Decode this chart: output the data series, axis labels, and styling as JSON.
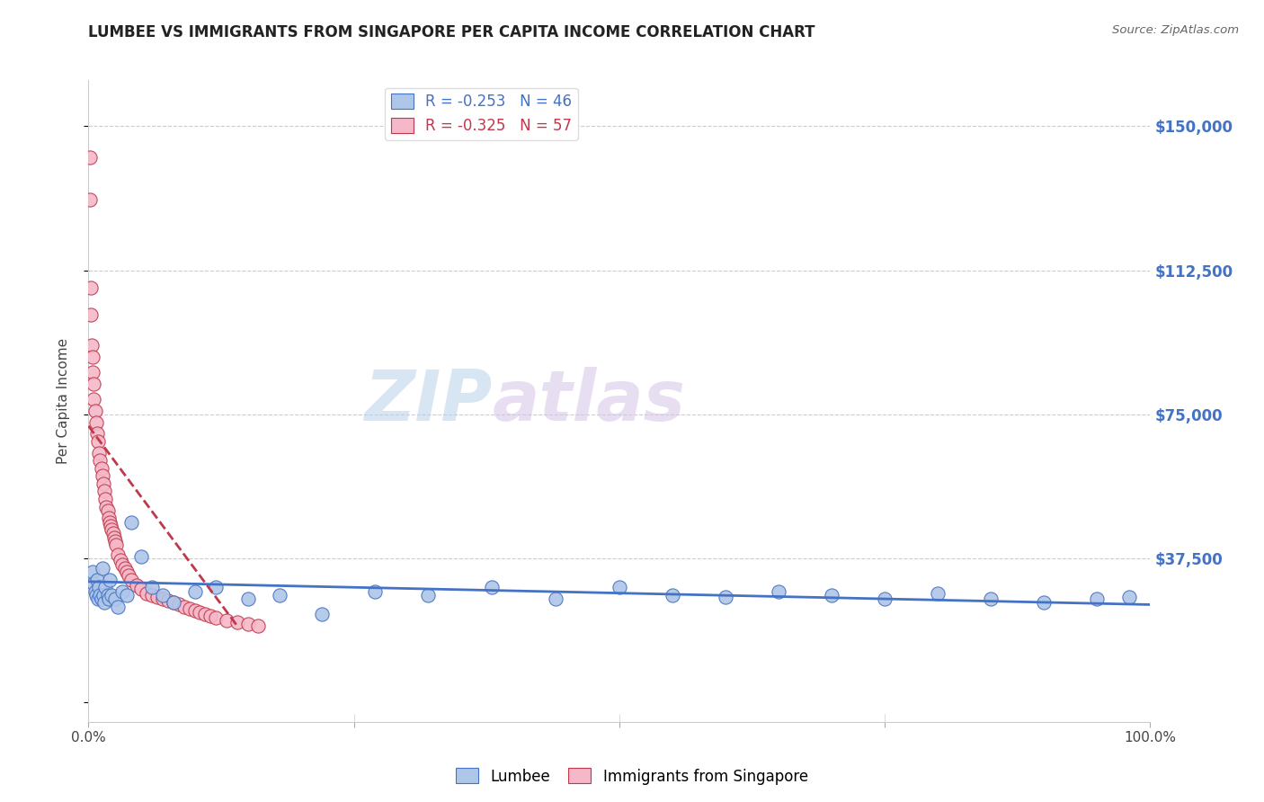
{
  "title": "LUMBEE VS IMMIGRANTS FROM SINGAPORE PER CAPITA INCOME CORRELATION CHART",
  "source": "Source: ZipAtlas.com",
  "ylabel": "Per Capita Income",
  "yticks": [
    0,
    37500,
    75000,
    112500,
    150000
  ],
  "ytick_labels": [
    "",
    "$37,500",
    "$75,000",
    "$112,500",
    "$150,000"
  ],
  "ylim": [
    -5000,
    162000
  ],
  "xlim": [
    0,
    1.0
  ],
  "watermark_zip": "ZIP",
  "watermark_atlas": "atlas",
  "legend_lumbee": "R = -0.253   N = 46",
  "legend_singapore": "R = -0.325   N = 57",
  "lumbee_color": "#aec6e8",
  "lumbee_line_color": "#4472c4",
  "singapore_color": "#f4b8c8",
  "singapore_line_color": "#c0384b",
  "background_color": "#ffffff",
  "grid_color": "#cccccc",
  "lumbee_x": [
    0.004,
    0.005,
    0.006,
    0.007,
    0.008,
    0.009,
    0.01,
    0.011,
    0.012,
    0.013,
    0.014,
    0.015,
    0.016,
    0.018,
    0.019,
    0.02,
    0.022,
    0.025,
    0.028,
    0.032,
    0.036,
    0.04,
    0.05,
    0.06,
    0.07,
    0.08,
    0.1,
    0.12,
    0.15,
    0.18,
    0.22,
    0.27,
    0.32,
    0.38,
    0.44,
    0.5,
    0.55,
    0.6,
    0.65,
    0.7,
    0.75,
    0.8,
    0.85,
    0.9,
    0.95,
    0.98
  ],
  "lumbee_y": [
    34000,
    31000,
    29000,
    28000,
    32000,
    27000,
    30000,
    28000,
    27000,
    35000,
    28000,
    26000,
    30000,
    28000,
    27000,
    32000,
    28000,
    27000,
    25000,
    29000,
    28000,
    47000,
    38000,
    30000,
    28000,
    26000,
    29000,
    30000,
    27000,
    28000,
    23000,
    29000,
    28000,
    30000,
    27000,
    30000,
    28000,
    27500,
    29000,
    28000,
    27000,
    28500,
    27000,
    26000,
    27000,
    27500
  ],
  "singapore_x": [
    0.001,
    0.0015,
    0.002,
    0.0025,
    0.003,
    0.0035,
    0.004,
    0.0045,
    0.005,
    0.006,
    0.007,
    0.008,
    0.009,
    0.01,
    0.011,
    0.012,
    0.013,
    0.014,
    0.015,
    0.016,
    0.017,
    0.018,
    0.019,
    0.02,
    0.021,
    0.022,
    0.023,
    0.024,
    0.025,
    0.026,
    0.028,
    0.03,
    0.032,
    0.034,
    0.036,
    0.038,
    0.04,
    0.045,
    0.05,
    0.055,
    0.06,
    0.065,
    0.07,
    0.075,
    0.08,
    0.085,
    0.09,
    0.095,
    0.1,
    0.105,
    0.11,
    0.115,
    0.12,
    0.13,
    0.14,
    0.15,
    0.16
  ],
  "singapore_y": [
    142000,
    131000,
    108000,
    101000,
    93000,
    90000,
    86000,
    83000,
    79000,
    76000,
    73000,
    70000,
    68000,
    65000,
    63000,
    61000,
    59000,
    57000,
    55000,
    53000,
    51000,
    50000,
    48000,
    47000,
    46000,
    45000,
    44000,
    43000,
    42000,
    41000,
    38500,
    37000,
    36000,
    35000,
    34000,
    33000,
    32000,
    30500,
    29500,
    28500,
    28000,
    27500,
    27000,
    26500,
    26000,
    25500,
    25000,
    24500,
    24000,
    23500,
    23000,
    22500,
    22000,
    21500,
    21000,
    20500,
    20000
  ],
  "lumbee_trend_x": [
    0.0,
    1.0
  ],
  "lumbee_trend_y": [
    31500,
    25500
  ],
  "singapore_trend_x": [
    0.0,
    0.14
  ],
  "singapore_trend_y": [
    72000,
    20000
  ]
}
